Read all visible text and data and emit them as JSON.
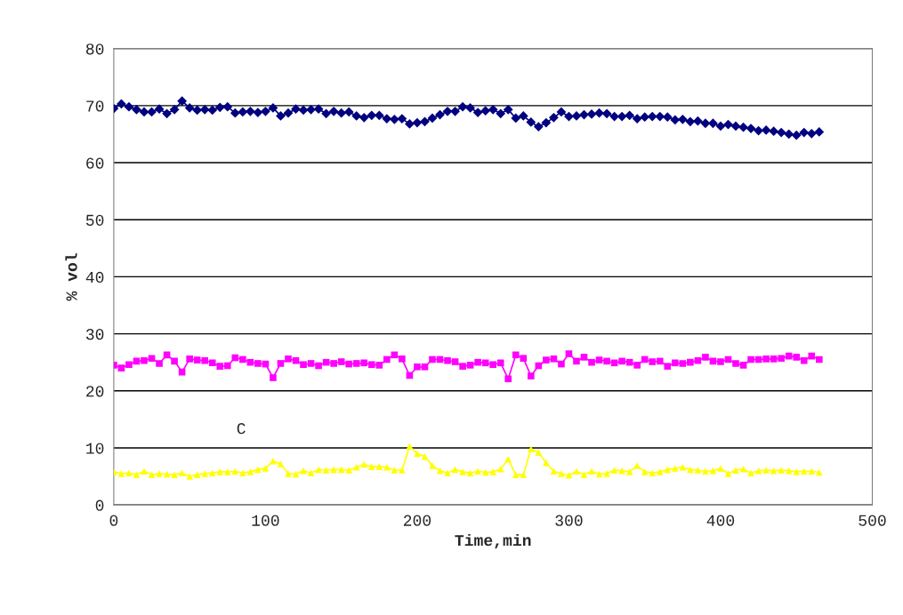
{
  "chart_data": {
    "type": "line",
    "xlabel": "Time,min",
    "ylabel": "% vol",
    "x": [
      0,
      5,
      10,
      15,
      20,
      25,
      30,
      35,
      40,
      45,
      50,
      55,
      60,
      65,
      70,
      75,
      80,
      85,
      90,
      95,
      100,
      105,
      110,
      115,
      120,
      125,
      130,
      135,
      140,
      145,
      150,
      155,
      160,
      165,
      170,
      175,
      180,
      185,
      190,
      195,
      200,
      205,
      210,
      215,
      220,
      225,
      230,
      235,
      240,
      245,
      250,
      255,
      260,
      265,
      270,
      275,
      280,
      285,
      290,
      295,
      300,
      305,
      310,
      315,
      320,
      325,
      330,
      335,
      340,
      345,
      350,
      355,
      360,
      365,
      370,
      375,
      380,
      385,
      390,
      395,
      400,
      405,
      410,
      415,
      420,
      425,
      430,
      435,
      440,
      445,
      450,
      455,
      460,
      465
    ],
    "series": [
      {
        "color": "#000080",
        "marker": "diamond",
        "values": [
          69.5,
          70.3,
          69.8,
          69.3,
          68.9,
          68.9,
          69.4,
          68.6,
          69.3,
          70.8,
          69.6,
          69.2,
          69.3,
          69.2,
          69.7,
          69.8,
          68.7,
          68.9,
          69.0,
          68.8,
          69.0,
          69.6,
          68.2,
          68.7,
          69.4,
          69.2,
          69.3,
          69.4,
          68.6,
          69.0,
          68.7,
          68.9,
          68.2,
          67.9,
          68.3,
          68.3,
          67.7,
          67.6,
          67.7,
          66.8,
          67.0,
          67.2,
          67.8,
          68.4,
          69.0,
          69.0,
          69.8,
          69.6,
          68.8,
          69.1,
          69.3,
          68.6,
          69.3,
          67.8,
          68.2,
          67.1,
          66.3,
          67.0,
          67.9,
          68.9,
          68.1,
          68.2,
          68.4,
          68.5,
          68.7,
          68.6,
          68.1,
          68.1,
          68.3,
          67.7,
          68.0,
          68.1,
          68.1,
          68.0,
          67.5,
          67.6,
          67.2,
          67.3,
          66.9,
          66.9,
          66.4,
          66.7,
          66.4,
          66.2,
          66.0,
          65.6,
          65.7,
          65.5,
          65.3,
          65.0,
          64.8,
          65.3,
          65.1,
          65.4
        ]
      },
      {
        "color": "#ff00ff",
        "marker": "square",
        "values": [
          24.5,
          24.0,
          24.6,
          25.2,
          25.3,
          25.7,
          24.8,
          26.3,
          25.2,
          23.3,
          25.6,
          25.4,
          25.3,
          24.9,
          24.3,
          24.4,
          25.8,
          25.5,
          25.0,
          24.8,
          24.7,
          22.3,
          24.8,
          25.6,
          25.3,
          24.6,
          24.8,
          24.4,
          25.0,
          24.8,
          25.1,
          24.7,
          24.8,
          24.9,
          24.6,
          24.5,
          25.5,
          26.3,
          25.6,
          22.7,
          24.2,
          24.2,
          25.5,
          25.5,
          25.3,
          25.1,
          24.3,
          24.5,
          25.0,
          24.9,
          24.6,
          24.9,
          22.1,
          26.3,
          25.7,
          22.6,
          24.4,
          25.4,
          25.6,
          24.7,
          26.5,
          25.2,
          25.9,
          25.0,
          25.4,
          25.2,
          24.9,
          25.2,
          25.0,
          24.5,
          25.5,
          25.1,
          25.2,
          24.3,
          24.9,
          24.8,
          25.0,
          25.3,
          25.9,
          25.2,
          25.1,
          25.5,
          24.8,
          24.5,
          25.5,
          25.5,
          25.6,
          25.6,
          25.7,
          26.1,
          25.9,
          25.3,
          26.1,
          25.5
        ]
      },
      {
        "color": "#ffff00",
        "marker": "triangle",
        "values": [
          5.8,
          5.5,
          5.6,
          5.3,
          5.9,
          5.3,
          5.5,
          5.4,
          5.3,
          5.6,
          5.0,
          5.3,
          5.5,
          5.6,
          5.8,
          5.8,
          5.9,
          5.6,
          5.8,
          6.2,
          6.4,
          7.7,
          7.2,
          5.5,
          5.4,
          6.0,
          5.6,
          6.2,
          6.1,
          6.2,
          6.2,
          6.1,
          6.6,
          7.1,
          6.7,
          6.7,
          6.6,
          6.1,
          6.1,
          10.3,
          9.0,
          8.5,
          6.9,
          6.0,
          5.6,
          6.2,
          5.8,
          5.6,
          5.9,
          5.7,
          5.8,
          6.3,
          8.0,
          5.3,
          5.3,
          9.8,
          9.2,
          7.4,
          5.9,
          5.5,
          5.2,
          5.9,
          5.3,
          5.9,
          5.4,
          5.5,
          6.1,
          6.0,
          5.8,
          6.9,
          5.8,
          5.6,
          5.8,
          6.2,
          6.4,
          6.6,
          6.2,
          6.1,
          5.9,
          6.0,
          6.4,
          5.5,
          6.1,
          6.3,
          5.6,
          6.0,
          6.1,
          6.0,
          6.1,
          6.0,
          5.8,
          5.9,
          5.9,
          5.7
        ]
      }
    ],
    "annotations": [
      "C"
    ],
    "xlim": [
      0,
      500
    ],
    "xticks": [
      0,
      100,
      200,
      300,
      400,
      500
    ],
    "ylim": [
      0,
      80
    ],
    "yticks": [
      0,
      10,
      20,
      30,
      40,
      50,
      60,
      70,
      80
    ],
    "grid": "y",
    "legend": false,
    "line_style": "solid"
  }
}
